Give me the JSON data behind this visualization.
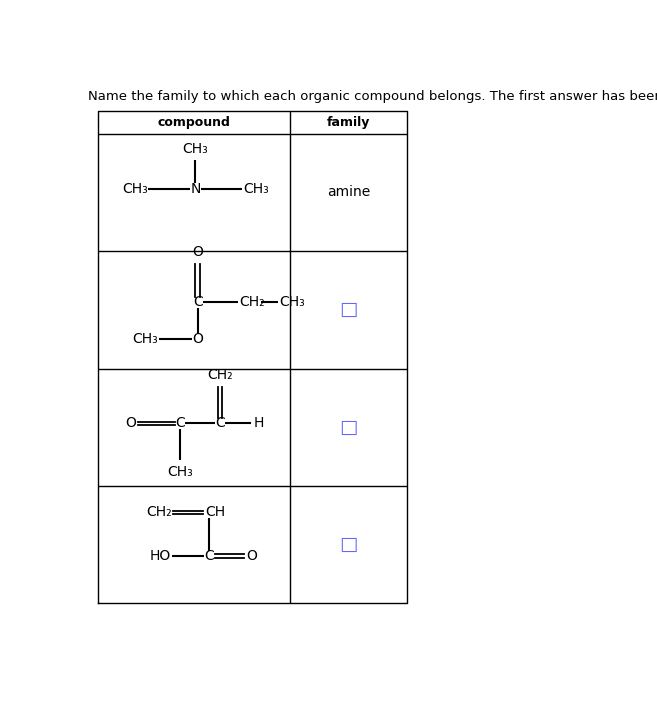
{
  "title": "Name the family to which each organic compound belongs. The first answer has been filled in for you.",
  "title_color": "#000000",
  "title_fontsize": 9.5,
  "header_compound": "compound",
  "header_family": "family",
  "header_fontsize": 9,
  "header_color": "#000000",
  "answer_color": "#000000",
  "answer_fontsize": 10,
  "checkbox_color": "#6666ff",
  "row1_answer": "amine",
  "bg_color": "#ffffff",
  "border_color": "#000000"
}
